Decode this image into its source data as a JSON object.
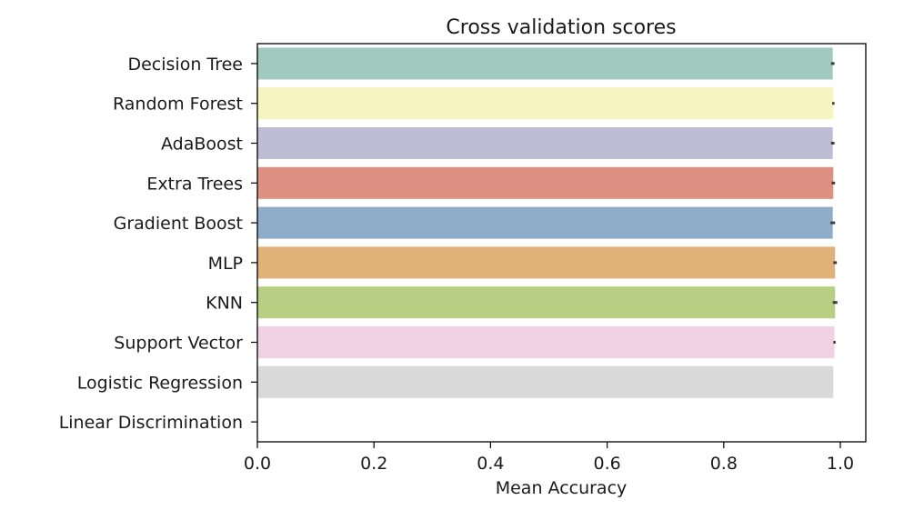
{
  "chart_data": {
    "type": "bar",
    "orientation": "horizontal",
    "title": "Cross validation scores",
    "xlabel": "Mean Accuracy",
    "ylabel": "",
    "xlim": [
      0,
      1.05
    ],
    "x_ticks": [
      "0.0",
      "0.2",
      "0.4",
      "0.6",
      "0.8",
      "1.0"
    ],
    "grid": false,
    "categories": [
      "Decision Tree",
      "Random Forest",
      "AdaBoost",
      "Extra Trees",
      "Gradient Boost",
      "MLP",
      "KNN",
      "Support Vector",
      "Logistic Regression",
      "Linear Discrimination"
    ],
    "values": [
      0.987,
      0.988,
      0.987,
      0.988,
      0.987,
      0.991,
      0.991,
      0.99,
      0.988,
      0.0
    ],
    "errors": [
      0.003,
      0.002,
      0.003,
      0.003,
      0.004,
      0.003,
      0.004,
      0.002,
      0.0,
      0.0
    ],
    "colors": [
      "#a0c9bf",
      "#f6f5c2",
      "#bfbcd6",
      "#de9182",
      "#8fadc8",
      "#e0b27a",
      "#b7cf82",
      "#f1d2e2",
      "#d9d9d9",
      "#bfdcc3"
    ]
  }
}
